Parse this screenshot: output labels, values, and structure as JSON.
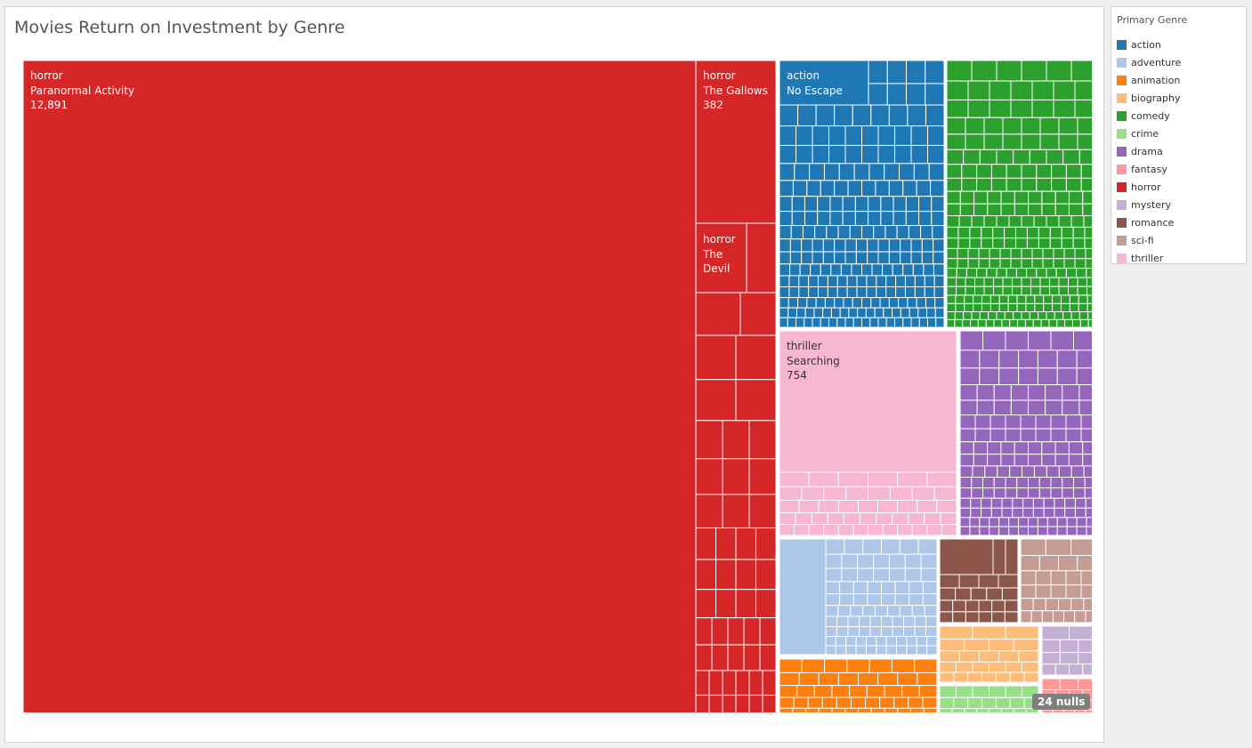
{
  "chart_data": {
    "type": "treemap",
    "title": "Movies Return on Investment by Genre",
    "legend_title": "Primary Genre",
    "legend_placement": "right",
    "size_measure": "return on investment",
    "genres": [
      {
        "name": "action",
        "color": "#1f77b4"
      },
      {
        "name": "adventure",
        "color": "#aec7e8"
      },
      {
        "name": "animation",
        "color": "#ff7f0e"
      },
      {
        "name": "biography",
        "color": "#ffbb78"
      },
      {
        "name": "comedy",
        "color": "#2ca02c"
      },
      {
        "name": "crime",
        "color": "#98df8a"
      },
      {
        "name": "drama",
        "color": "#9467bd"
      },
      {
        "name": "fantasy",
        "color": "#ff9896"
      },
      {
        "name": "horror",
        "color": "#d62728"
      },
      {
        "name": "mystery",
        "color": "#c5b0d5"
      },
      {
        "name": "romance",
        "color": "#8c564b"
      },
      {
        "name": "sci-fi",
        "color": "#c49c94"
      },
      {
        "name": "thriller",
        "color": "#f7b6d2"
      }
    ],
    "labeled_tiles": [
      {
        "genre": "horror",
        "movie": "Paranormal Activity",
        "value": 12891,
        "value_label": "12,891"
      },
      {
        "genre": "horror",
        "movie": "The Gallows",
        "value": 382,
        "value_label": "382"
      },
      {
        "genre": "horror",
        "movie": "The Devil",
        "value_label": ""
      },
      {
        "genre": "action",
        "movie": "No Escape",
        "value_label": ""
      },
      {
        "genre": "thriller",
        "movie": "Searching",
        "value": 754,
        "value_label": "754"
      }
    ],
    "nulls_indicator": "24 nulls"
  }
}
